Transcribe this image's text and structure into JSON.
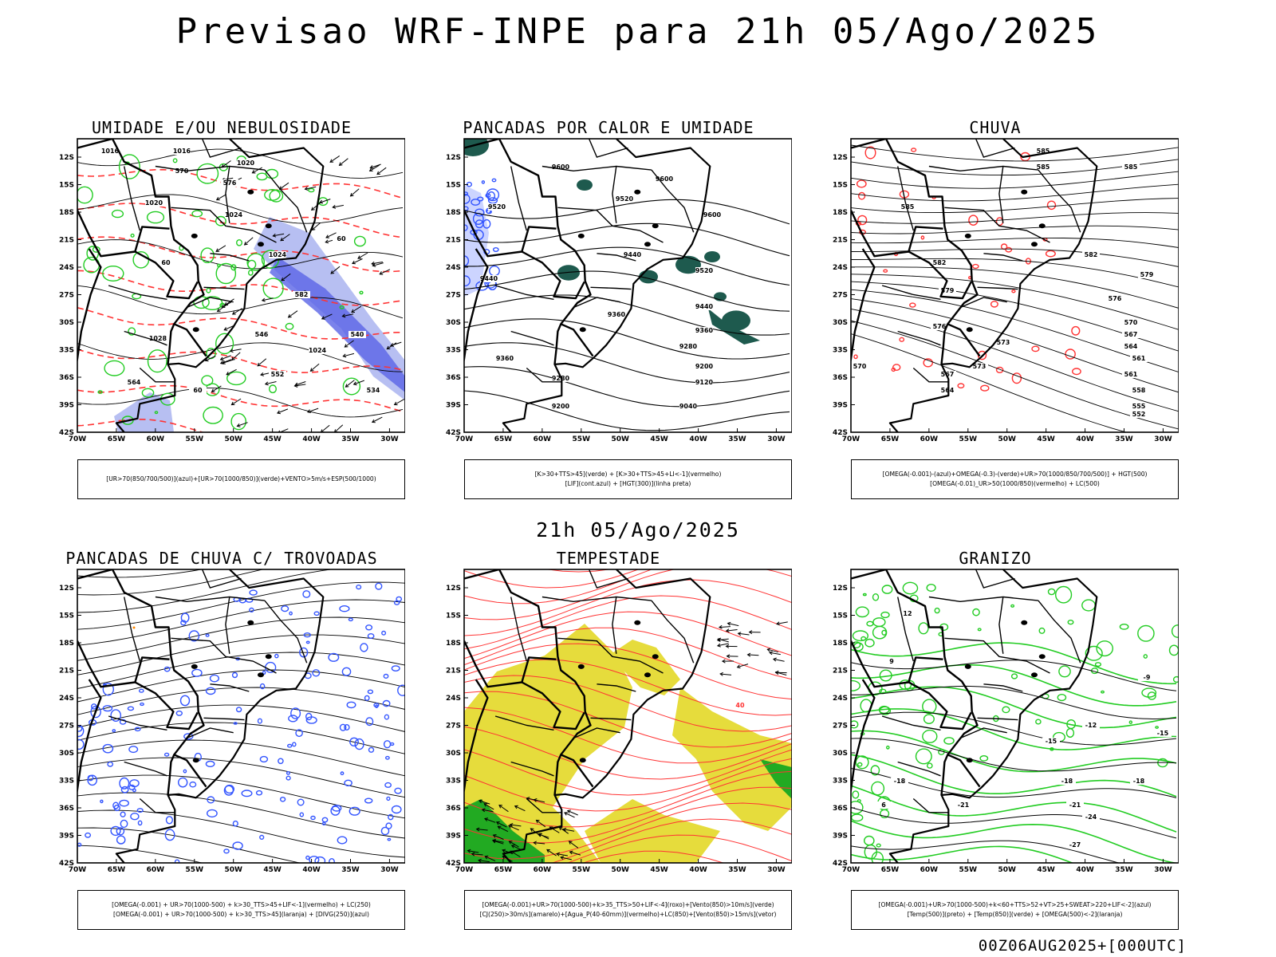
{
  "header": {
    "title": "Previsao WRF-INPE  para 21h 05/Ago/2025",
    "mid_title": "21h 05/Ago/2025",
    "footer_stamp": "00Z06AUG2025+[000UTC]"
  },
  "axes": {
    "lat_labels": [
      "12S",
      "15S",
      "18S",
      "21S",
      "24S",
      "27S",
      "30S",
      "33S",
      "36S",
      "39S",
      "42S"
    ],
    "lon_labels": [
      "70W",
      "65W",
      "60W",
      "55W",
      "50W",
      "45W",
      "40W",
      "35W",
      "30W"
    ]
  },
  "colors": {
    "green": "#22cc22",
    "red": "#ff3333",
    "blue": "#3355ff",
    "lavender": "#aab4f0",
    "darkteal": "#1e5a4e",
    "yellow": "#e6dc3c",
    "black": "#000000"
  },
  "panels": [
    {
      "title": "UMIDADE E/OU NEBULOSIDADE",
      "legend_lines": [
        "[UR>70(850/700/500)](azul)+[UR>70(1000/850)](verde)+VENTO>5m/s+ESP(500/1000)"
      ],
      "contour_labels": [
        "1016",
        "1016",
        "1020",
        "1020",
        "1024",
        "1024",
        "1028",
        "1024",
        "570",
        "576",
        "582",
        "564",
        "552",
        "546",
        "540",
        "534",
        "60",
        "60",
        "60"
      ]
    },
    {
      "title": "PANCADAS POR CALOR E UMIDADE",
      "legend_lines": [
        "[K>30+TTS>45](verde) + [K>30+TTS>45+LI<-1](vermelho)",
        "[LIF](cont.azul) + [HGT(300)](linha preta)"
      ],
      "contour_labels": [
        "9600",
        "9600",
        "9600",
        "9520",
        "9520",
        "9520",
        "9440",
        "9440",
        "9440",
        "9360",
        "9360",
        "9360",
        "9280",
        "9280",
        "9200",
        "9200",
        "9120",
        "9040"
      ]
    },
    {
      "title": "CHUVA",
      "legend_lines": [
        "[OMEGA(-0.001)-(azul)+OMEGA(-0.3)-(verde)+UR>70(1000/850/700/500)] + HGT(500)",
        "[OMEGA(-0.01)_UR>50(1000/850)(vermelho) + LC(500)"
      ],
      "contour_labels": [
        "585",
        "585",
        "585",
        "585",
        "582",
        "582",
        "579",
        "579",
        "576",
        "576",
        "573",
        "573",
        "570",
        "570",
        "567",
        "567",
        "564",
        "564",
        "561",
        "561",
        "558",
        "555",
        "552"
      ]
    },
    {
      "title": "PANCADAS DE CHUVA C/ TROVOADAS",
      "legend_lines": [
        "[OMEGA(-0.001) + UR>70(1000-500) + k>30_TTS>45+LIF<-1](vermelho) + LC(250)",
        "[OMEGA(-0.001) + UR>70(1000-500) + k>30_TTS>45](laranja) + [DIVG(250)](azul)"
      ],
      "contour_labels": []
    },
    {
      "title": "TEMPESTADE",
      "legend_lines": [
        "[OMEGA(-0.001)+UR>70(1000-500)+k>35_TTS>50+LIF<-4](roxo)+[Vento(850)>10m/s](verde)",
        "[CJ(250)>30m/s](amarelo)+[Agua_P(40-60mm)](vermelho)+LC(850)+[Vento(850)>15m/s](vetor)"
      ],
      "contour_labels": [
        "40"
      ]
    },
    {
      "title": "GRANIZO",
      "legend_lines": [
        "[OMEGA(-0.001)+UR>70(1000-500)+k<60+TTS>52+VT>25+SWEAT>220+LIF<-2](azul)",
        "[Temp(500)](preto) + [Temp(850)](verde) + [OMEGA(500)<-2](laranja)"
      ],
      "contour_labels": [
        "-9",
        "-12",
        "-15",
        "-15",
        "-18",
        "-18",
        "-18",
        "-21",
        "-21",
        "-24",
        "-27",
        "12",
        "9",
        "6"
      ]
    }
  ]
}
